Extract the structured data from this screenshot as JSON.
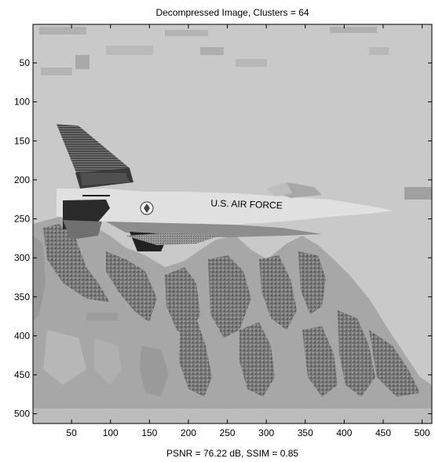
{
  "chart_data": {
    "type": "heatmap",
    "title": "Decompressed Image, Clusters = 64",
    "xlabel": "PSNR = 76.22 dB, SSIM = 0.85",
    "ylabel": "",
    "xlim": [
      0.5,
      512.5
    ],
    "ylim": [
      0.5,
      512.5
    ],
    "y_reversed": true,
    "xticks": [
      50,
      100,
      150,
      200,
      250,
      300,
      350,
      400,
      450,
      500
    ],
    "yticks": [
      50,
      100,
      150,
      200,
      250,
      300,
      350,
      400,
      450,
      500
    ],
    "grid": false,
    "colormap": "gray",
    "image_content": "grayscale F-16 jet in flight above snowy mountains",
    "fuselage_text": "U.S. AIR FORCE"
  }
}
